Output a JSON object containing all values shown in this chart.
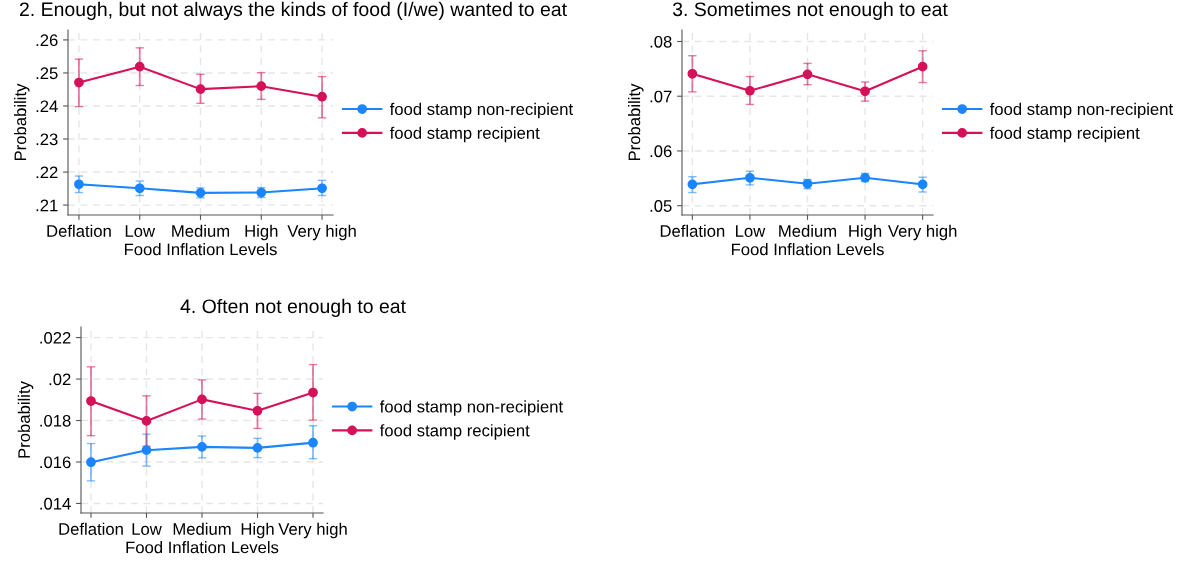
{
  "chart_data": [
    {
      "type": "line",
      "title": "2. Enough, but not always the kinds of food (I/we) wanted to eat",
      "xlabel": "Food Inflation Levels",
      "ylabel": "Probability",
      "categories": [
        "Deflation",
        "Low",
        "Medium",
        "High",
        "Very high"
      ],
      "ylim": [
        0.207,
        0.263
      ],
      "yticks": [
        {
          "value": 0.21,
          "label": ".21"
        },
        {
          "value": 0.22,
          "label": ".22"
        },
        {
          "value": 0.23,
          "label": ".23"
        },
        {
          "value": 0.24,
          "label": ".24"
        },
        {
          "value": 0.25,
          "label": ".25"
        },
        {
          "value": 0.26,
          "label": ".26"
        }
      ],
      "grid": true,
      "legend": "right",
      "marker": "circle",
      "series": [
        {
          "name": "food stamp non-recipient",
          "color": "#1a85ff",
          "values": [
            0.2163,
            0.2151,
            0.2137,
            0.2138,
            0.2151
          ],
          "errors": [
            [
              0.2138,
              0.2188
            ],
            [
              0.2129,
              0.2173
            ],
            [
              0.2122,
              0.2152
            ],
            [
              0.2123,
              0.2153
            ],
            [
              0.2129,
              0.2175
            ]
          ]
        },
        {
          "name": "food stamp recipient",
          "color": "#d41159",
          "values": [
            0.2471,
            0.2519,
            0.2451,
            0.246,
            0.2428
          ],
          "errors": [
            [
              0.2398,
              0.2542
            ],
            [
              0.2462,
              0.2576
            ],
            [
              0.2408,
              0.2496
            ],
            [
              0.242,
              0.2501
            ],
            [
              0.2364,
              0.2489
            ]
          ]
        }
      ]
    },
    {
      "type": "line",
      "title": "3. Sometimes not enough to eat",
      "xlabel": "Food Inflation Levels",
      "ylabel": "Probability",
      "categories": [
        "Deflation",
        "Low",
        "Medium",
        "High",
        "Very high"
      ],
      "ylim": [
        0.0483,
        0.0821
      ],
      "yticks": [
        {
          "value": 0.05,
          "label": ".05"
        },
        {
          "value": 0.06,
          "label": ".06"
        },
        {
          "value": 0.07,
          "label": ".07"
        },
        {
          "value": 0.08,
          "label": ".08"
        }
      ],
      "grid": true,
      "legend": "right",
      "marker": "circle",
      "series": [
        {
          "name": "food stamp non-recipient",
          "color": "#1a85ff",
          "values": [
            0.0539,
            0.0551,
            0.054,
            0.0551,
            0.0539
          ],
          "errors": [
            [
              0.0524,
              0.0553
            ],
            [
              0.0538,
              0.0563
            ],
            [
              0.0531,
              0.0548
            ],
            [
              0.0544,
              0.0559
            ],
            [
              0.0525,
              0.0552
            ]
          ]
        },
        {
          "name": "food stamp recipient",
          "color": "#d41159",
          "values": [
            0.0741,
            0.071,
            0.074,
            0.0709,
            0.0754
          ],
          "errors": [
            [
              0.0708,
              0.0774
            ],
            [
              0.0685,
              0.0736
            ],
            [
              0.0721,
              0.076
            ],
            [
              0.0691,
              0.0726
            ],
            [
              0.0725,
              0.0783
            ]
          ]
        }
      ]
    },
    {
      "type": "line",
      "title": "4. Often not enough to eat",
      "xlabel": "Food Inflation Levels",
      "ylabel": "Probability",
      "categories": [
        "Deflation",
        "Low",
        "Medium",
        "High",
        "Very high"
      ],
      "ylim": [
        0.01354,
        0.02251
      ],
      "yticks": [
        {
          "value": 0.014,
          "label": ".014"
        },
        {
          "value": 0.016,
          "label": ".016"
        },
        {
          "value": 0.018,
          "label": ".018"
        },
        {
          "value": 0.02,
          "label": ".02"
        },
        {
          "value": 0.022,
          "label": ".022"
        }
      ],
      "grid": true,
      "legend": "right",
      "marker": "circle",
      "series": [
        {
          "name": "food stamp non-recipient",
          "color": "#1a85ff",
          "values": [
            0.01599,
            0.01657,
            0.01673,
            0.01668,
            0.01693
          ],
          "errors": [
            [
              0.01509,
              0.01689
            ],
            [
              0.0158,
              0.01734
            ],
            [
              0.0162,
              0.01725
            ],
            [
              0.01621,
              0.01714
            ],
            [
              0.01616,
              0.01775
            ]
          ]
        },
        {
          "name": "food stamp recipient",
          "color": "#d41159",
          "values": [
            0.01894,
            0.01798,
            0.01902,
            0.01847,
            0.01935
          ],
          "errors": [
            [
              0.01727,
              0.02059
            ],
            [
              0.01676,
              0.01919
            ],
            [
              0.01807,
              0.01996
            ],
            [
              0.01762,
              0.01931
            ],
            [
              0.01802,
              0.0207
            ]
          ]
        }
      ]
    }
  ]
}
